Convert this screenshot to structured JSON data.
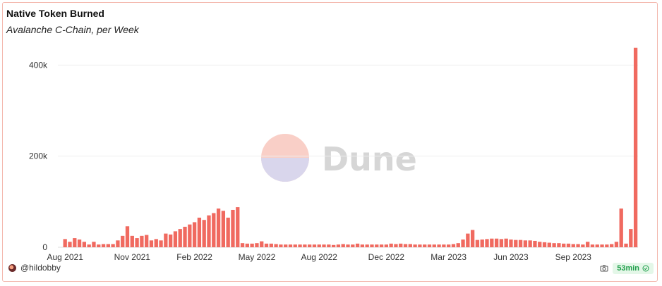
{
  "header": {
    "title": "Native Token Burned",
    "subtitle": "Avalanche C-Chain, per Week"
  },
  "footer": {
    "user": "@hildobby",
    "refresh": "53min"
  },
  "watermark": {
    "text": "Dune"
  },
  "colors": {
    "bar": "#f06a60",
    "border": "#f3b7ad",
    "grid": "#eeeeee",
    "badge_bg": "#e4f7e8",
    "badge_fg": "#1e9e4a"
  },
  "icons": {
    "avatar": "avatar-icon",
    "camera": "camera-icon",
    "check": "check-circle-icon"
  },
  "chart_data": {
    "type": "bar",
    "title": "Native Token Burned",
    "subtitle": "Avalanche C-Chain, per Week",
    "xlabel": "",
    "ylabel": "",
    "ylim": [
      0,
      450000
    ],
    "yticks": [
      0,
      200000,
      400000
    ],
    "ytick_labels": [
      "0",
      "200k",
      "400k"
    ],
    "xtick_labels": [
      "Aug 2021",
      "Nov 2021",
      "Feb 2022",
      "May 2022",
      "Aug 2022",
      "Dec 2022",
      "Mar 2023",
      "Jun 2023",
      "Sep 2023"
    ],
    "xtick_indices": [
      1,
      15,
      28,
      41,
      54,
      68,
      81,
      94,
      107
    ],
    "grid": true,
    "legend": "none",
    "series": [
      {
        "values": [
          0,
          18000,
          12000,
          20000,
          17000,
          12000,
          6000,
          12000,
          6000,
          7000,
          7000,
          7000,
          15000,
          25000,
          46000,
          25000,
          20000,
          25000,
          27000,
          15000,
          18000,
          15000,
          30000,
          28000,
          35000,
          40000,
          45000,
          50000,
          55000,
          65000,
          60000,
          70000,
          75000,
          85000,
          80000,
          65000,
          82000,
          88000,
          9000,
          8000,
          8000,
          9000,
          13000,
          8000,
          8000,
          7000,
          6000,
          6000,
          6000,
          6000,
          6000,
          6000,
          6000,
          6000,
          6000,
          6000,
          6000,
          5000,
          6000,
          7000,
          6000,
          6000,
          8000,
          6000,
          6000,
          6000,
          6000,
          6000,
          6000,
          8000,
          7000,
          8000,
          7000,
          7000,
          6000,
          6000,
          6000,
          6000,
          6000,
          6000,
          6000,
          6000,
          7000,
          9000,
          17000,
          30000,
          38000,
          16000,
          17000,
          18000,
          19000,
          19000,
          18000,
          19000,
          17000,
          16000,
          16000,
          15000,
          15000,
          14000,
          12000,
          11000,
          10000,
          9000,
          9000,
          8000,
          8000,
          7000,
          7000,
          6000,
          12000,
          6000,
          6000,
          6000,
          6000,
          7000,
          12000,
          85000,
          8000,
          40000,
          438000
        ]
      }
    ]
  }
}
